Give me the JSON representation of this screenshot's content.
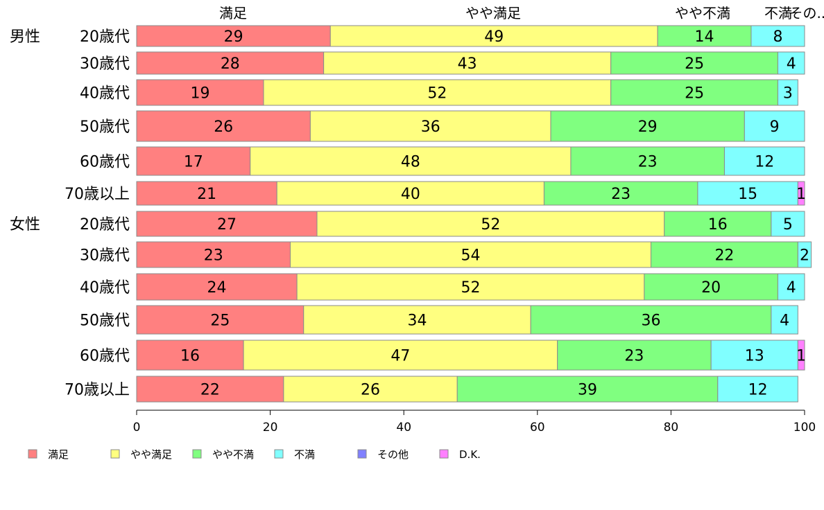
{
  "chart_data": {
    "type": "bar",
    "orientation": "horizontal",
    "stacked": true,
    "xlim": [
      0,
      100
    ],
    "xticks": [
      0,
      20,
      40,
      60,
      80,
      100
    ],
    "grid": false,
    "legend_position": "bottom",
    "top_labels": [
      "満足",
      "やや満足",
      "やや不満",
      "不満",
      "その..."
    ],
    "groups": [
      "男性",
      "",
      "",
      "",
      "",
      "",
      "女性",
      "",
      "",
      "",
      "",
      ""
    ],
    "categories": [
      "20歳代",
      "30歳代",
      "40歳代",
      "50歳代",
      "60歳代",
      "70歳以上",
      "20歳代",
      "30歳代",
      "40歳代",
      "50歳代",
      "60歳代",
      "70歳以上"
    ],
    "series": [
      {
        "name": "満足",
        "color": "#ff8080",
        "values": [
          29,
          28,
          19,
          26,
          17,
          21,
          27,
          23,
          24,
          25,
          16,
          22
        ]
      },
      {
        "name": "やや満足",
        "color": "#ffff80",
        "values": [
          49,
          43,
          52,
          36,
          48,
          40,
          52,
          54,
          52,
          34,
          47,
          26
        ]
      },
      {
        "name": "やや不満",
        "color": "#80ff80",
        "values": [
          14,
          25,
          25,
          29,
          23,
          23,
          16,
          22,
          20,
          36,
          23,
          39
        ]
      },
      {
        "name": "不満",
        "color": "#80ffff",
        "values": [
          8,
          4,
          3,
          9,
          12,
          15,
          5,
          2,
          4,
          4,
          13,
          12
        ]
      },
      {
        "name": "その他",
        "color": "#8080ff",
        "values": [
          0,
          0,
          0,
          0,
          0,
          0,
          0,
          0,
          0,
          0,
          0,
          0
        ]
      },
      {
        "name": "D.K.",
        "color": "#ff80ff",
        "values": [
          0,
          0,
          0,
          0,
          0,
          1,
          0,
          0,
          0,
          0,
          1,
          0
        ]
      }
    ]
  }
}
